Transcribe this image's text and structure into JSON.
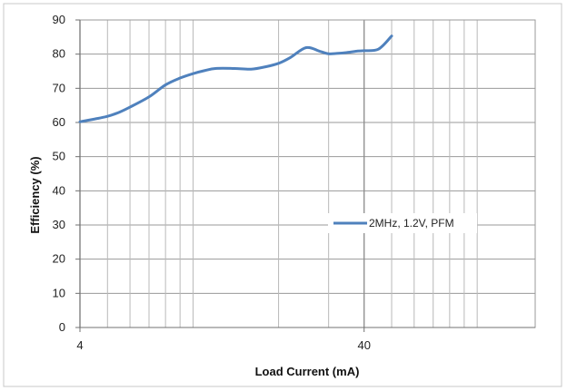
{
  "chart_data": {
    "type": "line",
    "title": "",
    "xlabel": "Load Current (mA)",
    "ylabel": "Efficiency (%)",
    "x_scale": "log",
    "xlim": [
      4,
      160
    ],
    "ylim": [
      0,
      90
    ],
    "x_ticks": [
      4,
      40
    ],
    "x_tick_labels": [
      "4",
      "40"
    ],
    "y_ticks": [
      0,
      10,
      20,
      30,
      40,
      50,
      60,
      70,
      80,
      90
    ],
    "y_tick_labels": [
      "0",
      "10",
      "20",
      "30",
      "40",
      "50",
      "60",
      "70",
      "80",
      "90"
    ],
    "grid": true,
    "legend_position": "center-right",
    "series": [
      {
        "name": "2MHz, 1.2V, PFM",
        "color": "#4f81bd",
        "x": [
          4,
          4.5,
          5,
          5.5,
          6,
          7,
          8,
          9,
          10,
          11,
          12,
          14,
          16,
          18,
          20,
          22,
          25,
          28,
          30,
          32,
          35,
          38,
          40,
          45,
          50
        ],
        "y": [
          60.2,
          61,
          61.8,
          63,
          64.5,
          67.5,
          71,
          73,
          74.3,
          75.2,
          75.8,
          75.8,
          75.6,
          76.3,
          77.3,
          79,
          81.9,
          80.8,
          80.1,
          80.2,
          80.5,
          80.9,
          81.0,
          81.5,
          85.3
        ]
      }
    ]
  }
}
